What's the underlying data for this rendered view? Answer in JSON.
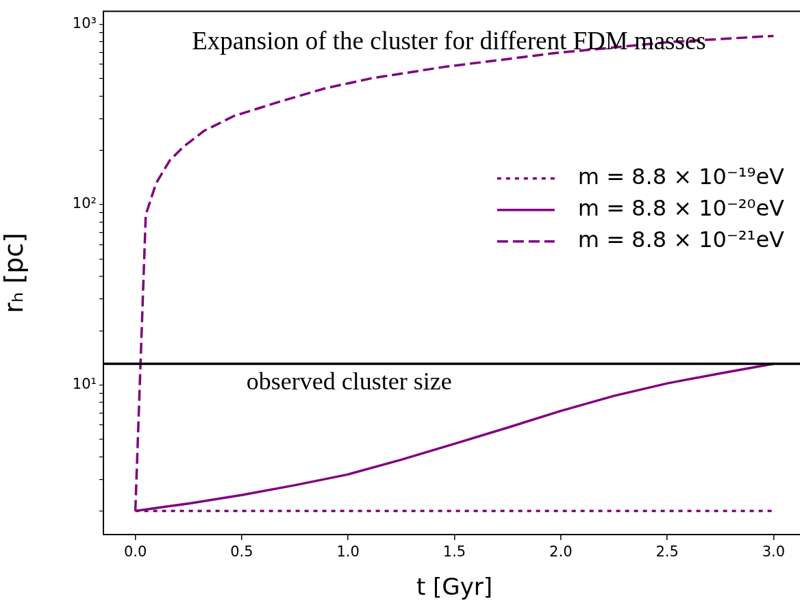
{
  "chart_data": {
    "type": "line",
    "title": "Expansion of the cluster for different FDM masses",
    "xlabel": "t [Gyr]",
    "ylabel": "rₕ [pc]",
    "log": "y",
    "legend": "right",
    "grid": false,
    "xlim": [
      -0.15,
      3.15
    ],
    "xticks": [
      {
        "value": 0,
        "label": "0.0"
      },
      {
        "value": 0.5,
        "label": "0.5"
      },
      {
        "value": 1,
        "label": "1.0"
      },
      {
        "value": 1.5,
        "label": "1.5"
      },
      {
        "value": 2,
        "label": "2.0"
      },
      {
        "value": 2.5,
        "label": "2.5"
      },
      {
        "value": 3,
        "label": "3.0"
      }
    ],
    "ylim": [
      1.48,
      1180
    ],
    "yticks": [
      {
        "value": 2,
        "label": null
      },
      {
        "value": 3,
        "label": null
      },
      {
        "value": 4,
        "label": null
      },
      {
        "value": 5,
        "label": null
      },
      {
        "value": 6,
        "label": null
      },
      {
        "value": 7,
        "label": null
      },
      {
        "value": 8,
        "label": null
      },
      {
        "value": 9,
        "label": null
      },
      {
        "value": 10,
        "label": "10¹"
      },
      {
        "value": 20,
        "label": null
      },
      {
        "value": 30,
        "label": null
      },
      {
        "value": 40,
        "label": null
      },
      {
        "value": 50,
        "label": null
      },
      {
        "value": 60,
        "label": null
      },
      {
        "value": 70,
        "label": null
      },
      {
        "value": 80,
        "label": null
      },
      {
        "value": 90,
        "label": null
      },
      {
        "value": 100,
        "label": "10²"
      },
      {
        "value": 200,
        "label": null
      },
      {
        "value": 300,
        "label": null
      },
      {
        "value": 400,
        "label": null
      },
      {
        "value": 500,
        "label": null
      },
      {
        "value": 600,
        "label": null
      },
      {
        "value": 700,
        "label": null
      },
      {
        "value": 800,
        "label": null
      },
      {
        "value": 900,
        "label": null
      },
      {
        "value": 1000,
        "label": "10³"
      }
    ],
    "ref_lines": [
      {
        "axis": "y",
        "value": 13.1,
        "label": "observed cluster size",
        "color": "#000000"
      }
    ],
    "series": [
      {
        "name": "m = 8.8 × 10⁻¹⁹eV",
        "color": "#800080",
        "line_style": "dotted",
        "x": [
          0,
          3
        ],
        "values": [
          2,
          2
        ]
      },
      {
        "name": "m = 8.8 × 10⁻²⁰eV",
        "color": "#800080",
        "line_style": "solid",
        "x": [
          0,
          0.25,
          0.5,
          0.75,
          1,
          1.25,
          1.5,
          1.75,
          2,
          2.25,
          2.5,
          2.75,
          3
        ],
        "values": [
          2,
          2.2,
          2.45,
          2.78,
          3.19,
          3.85,
          4.72,
          5.8,
          7.18,
          8.7,
          10.2,
          11.6,
          13.1
        ]
      },
      {
        "name": "m = 8.8 × 10⁻²¹eV",
        "color": "#800080",
        "line_style": "dashed",
        "x": [
          0,
          0.049,
          0.097,
          0.162,
          0.227,
          0.324,
          0.463,
          0.68,
          0.89,
          1.11,
          1.45,
          1.975,
          2.515,
          3
        ],
        "values": [
          2,
          87.7,
          131,
          176,
          210,
          257,
          310,
          373,
          441,
          502,
          580,
          693,
          798,
          863
        ]
      }
    ]
  }
}
